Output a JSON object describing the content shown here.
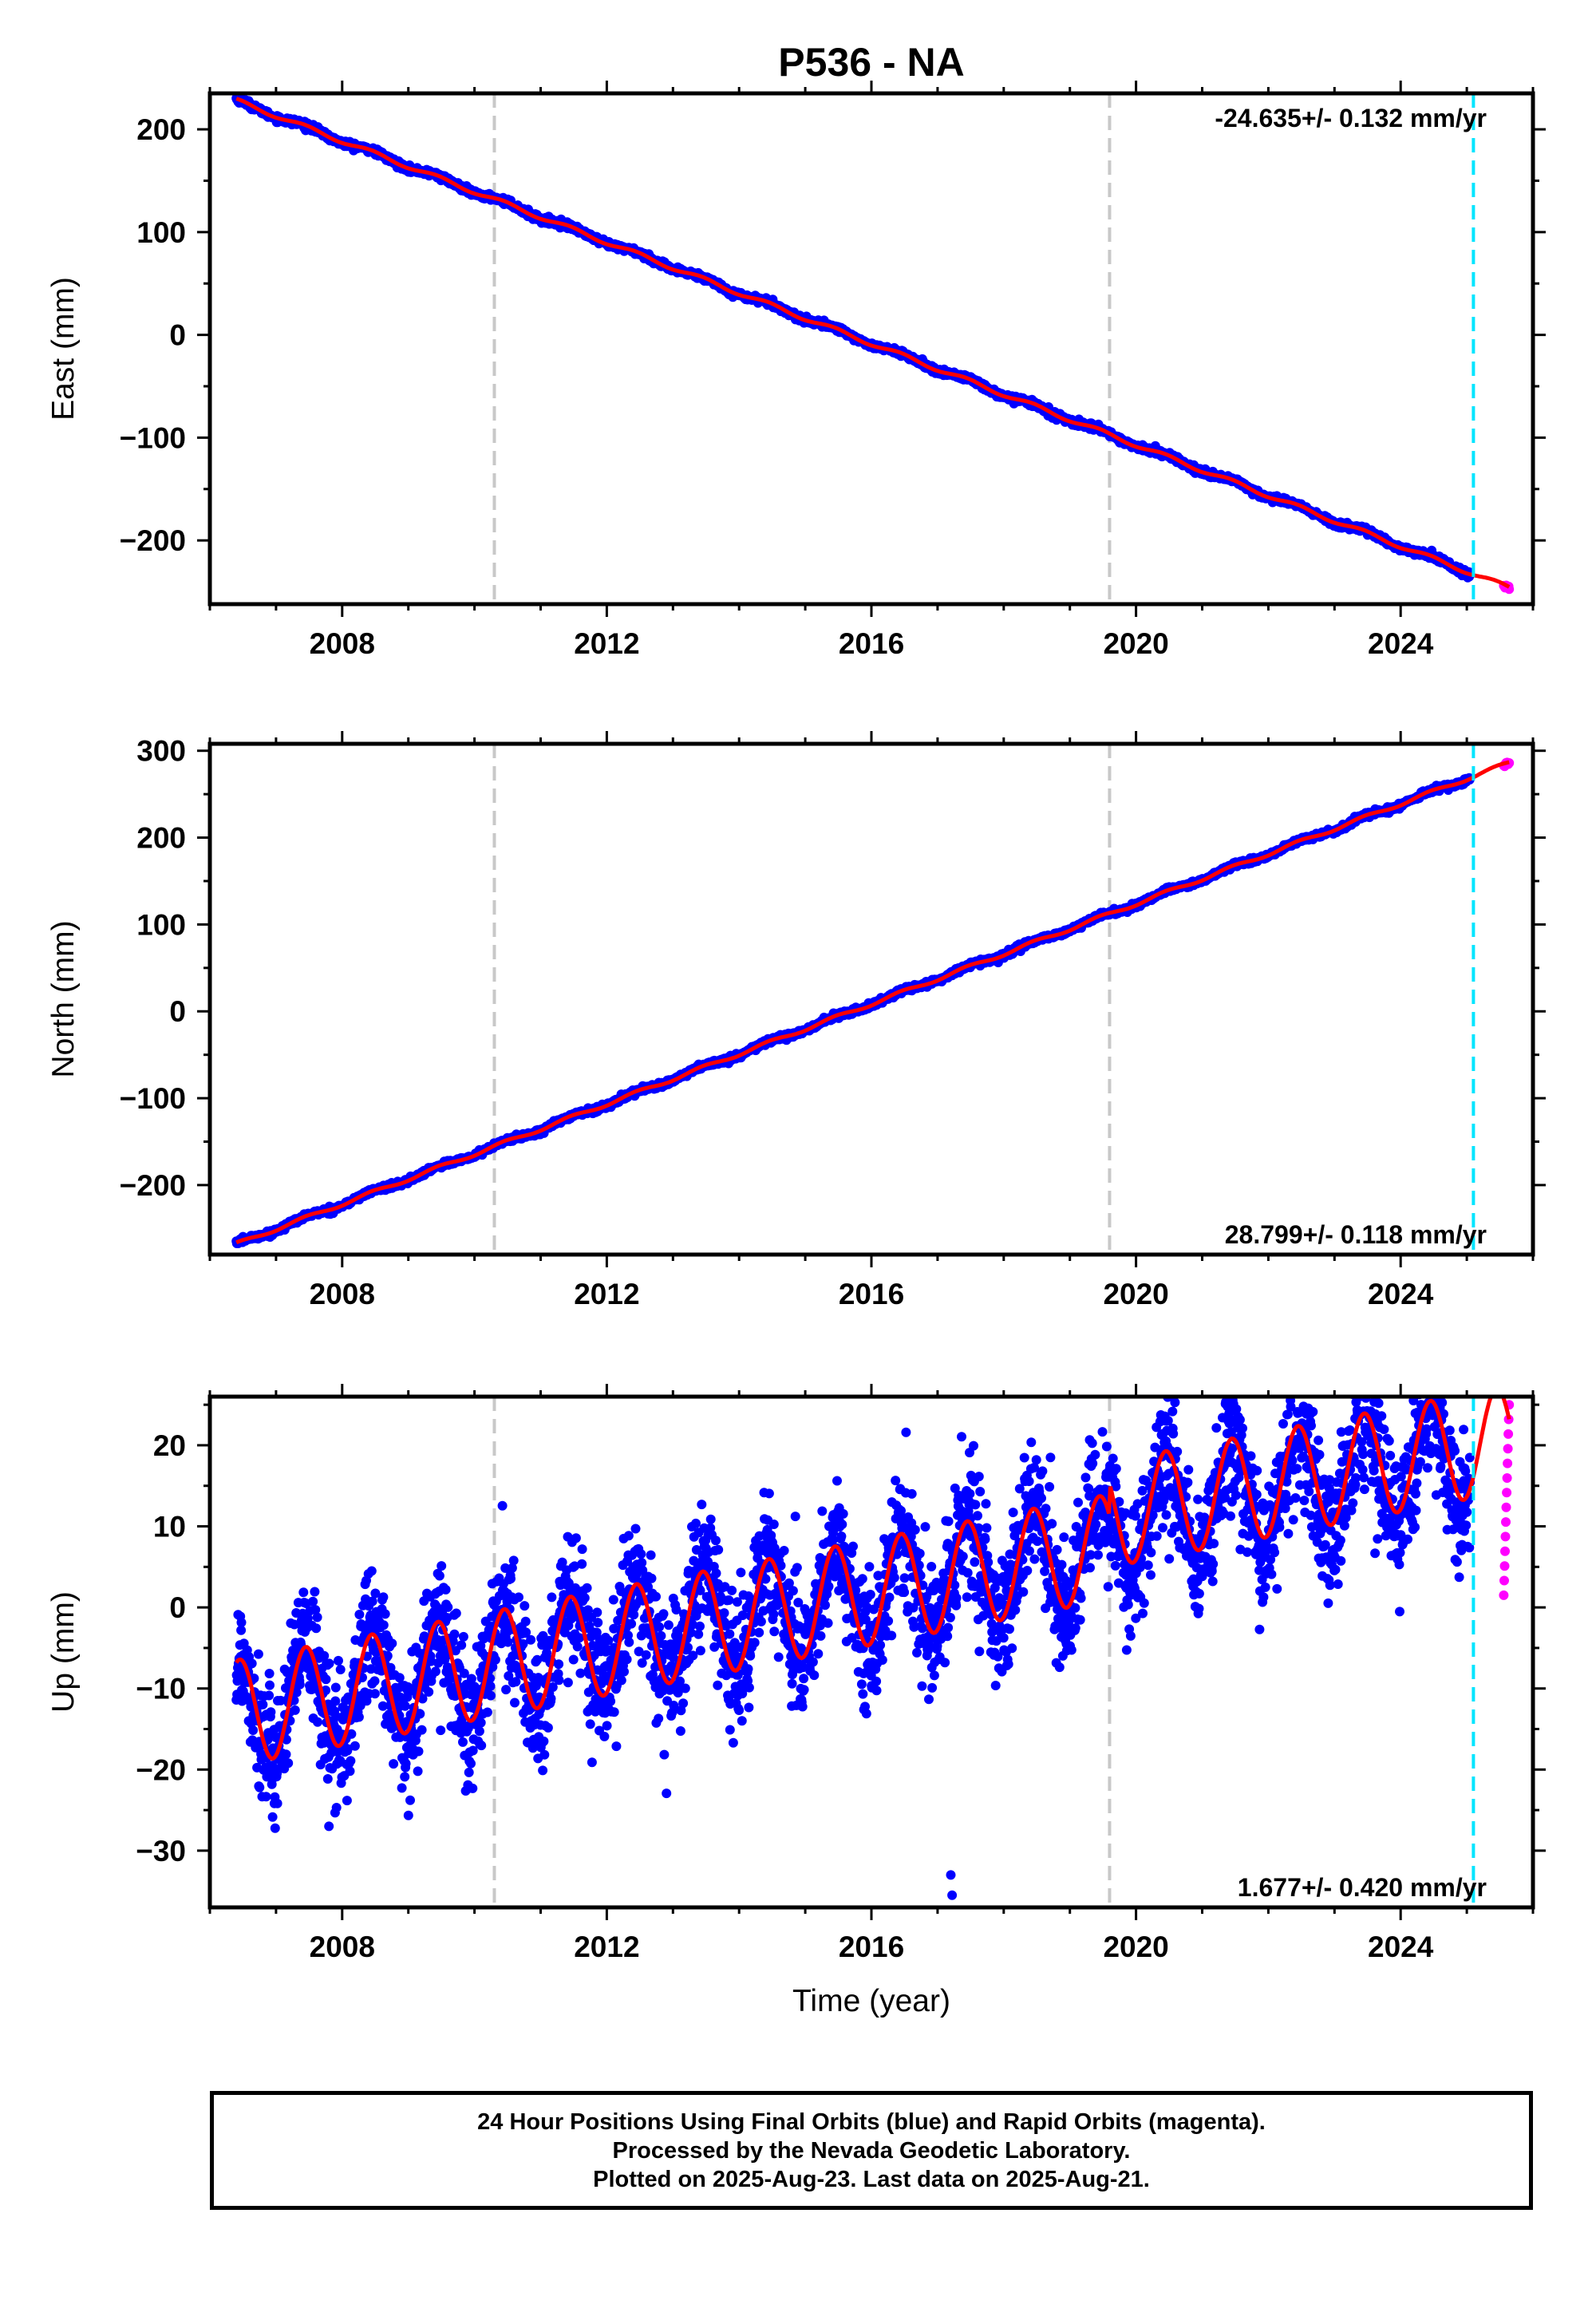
{
  "title": "P536 - NA",
  "chart_data": [
    {
      "type": "scatter",
      "panel": "east",
      "ylabel": "East (mm)",
      "xlabel": "",
      "xlim": [
        2006.0,
        2026.0
      ],
      "ylim": [
        -262,
        235
      ],
      "xticks": [
        2008,
        2012,
        2016,
        2020,
        2024
      ],
      "yticks": [
        -200,
        -100,
        0,
        100,
        200
      ],
      "ytick_labels": [
        "−200",
        "−100",
        "0",
        "100",
        "200"
      ],
      "rate_label": "-24.635+/- 0.132 mm/yr",
      "rate_position": "top-right",
      "gray_dashed_x": [
        2010.3,
        2019.6
      ],
      "cyan_dashed_x": [
        2025.1
      ],
      "final_orbits": {
        "name": "Final Orbits",
        "color": "#0000ff",
        "x_range": [
          2006.4,
          2025.05
        ],
        "trend": {
          "x0": 2006.4,
          "y0": 228,
          "slope": -24.635
        },
        "noise_mm": 2.5,
        "annual_mm": 2.0
      },
      "rapid_orbits": {
        "name": "Rapid Orbits",
        "color": "#ff00ff",
        "x_range": [
          2025.1,
          2025.64
        ]
      },
      "model": {
        "color": "#ff0000"
      }
    },
    {
      "type": "scatter",
      "panel": "north",
      "ylabel": "North (mm)",
      "xlabel": "",
      "xlim": [
        2006.0,
        2026.0
      ],
      "ylim": [
        -280,
        308
      ],
      "xticks": [
        2008,
        2012,
        2016,
        2020,
        2024
      ],
      "yticks": [
        -200,
        -100,
        0,
        100,
        200,
        300
      ],
      "ytick_labels": [
        "−200",
        "−100",
        "0",
        "100",
        "200",
        "300"
      ],
      "rate_label": "28.799+/- 0.118 mm/yr",
      "rate_position": "bottom-right",
      "gray_dashed_x": [
        2010.3,
        2019.6
      ],
      "cyan_dashed_x": [
        2025.1
      ],
      "final_orbits": {
        "name": "Final Orbits",
        "color": "#0000ff",
        "x_range": [
          2006.4,
          2025.05
        ],
        "trend": {
          "x0": 2006.4,
          "y0": -268,
          "slope": 28.799
        },
        "noise_mm": 2.5,
        "annual_mm": 2.0
      },
      "rapid_orbits": {
        "name": "Rapid Orbits",
        "color": "#ff00ff",
        "x_range": [
          2025.1,
          2025.64
        ]
      },
      "model": {
        "color": "#ff0000"
      }
    },
    {
      "type": "scatter",
      "panel": "up",
      "ylabel": "Up (mm)",
      "xlabel": "Time (year)",
      "xlim": [
        2006.0,
        2026.0
      ],
      "ylim": [
        -37,
        26
      ],
      "xticks": [
        2008,
        2012,
        2016,
        2020,
        2024
      ],
      "yticks": [
        -30,
        -20,
        -10,
        0,
        10,
        20
      ],
      "ytick_labels": [
        "−30",
        "−20",
        "−10",
        "0",
        "10",
        "20"
      ],
      "rate_label": "1.677+/- 0.420 mm/yr",
      "rate_position": "bottom-right",
      "gray_dashed_x": [
        2010.3,
        2019.6
      ],
      "cyan_dashed_x": [
        2025.1
      ],
      "final_orbits": {
        "name": "Final Orbits",
        "color": "#0000ff",
        "x_range": [
          2006.4,
          2025.05
        ],
        "trend": {
          "x0": 2006.4,
          "y0": -13,
          "slope": 1.55
        },
        "noise_mm": 4.0,
        "annual_mm": 6.5,
        "outliers": [
          [
            2017.2,
            -33
          ],
          [
            2017.22,
            -35.5
          ],
          [
            2007.8,
            -27
          ]
        ]
      },
      "rapid_orbits": {
        "name": "Rapid Orbits",
        "color": "#ff00ff",
        "x_range": [
          2025.1,
          2025.64
        ],
        "y_range": [
          1.5,
          25
        ]
      },
      "model": {
        "color": "#ff0000",
        "offset_at": 2019.6,
        "offset_mm": 4
      }
    }
  ],
  "footer": {
    "line1": "24 Hour Positions Using Final Orbits (blue) and Rapid Orbits (magenta).",
    "line2": "Processed by the Nevada Geodetic Laboratory.",
    "line3": "Plotted on 2025-Aug-23. Last data on 2025-Aug-21."
  }
}
